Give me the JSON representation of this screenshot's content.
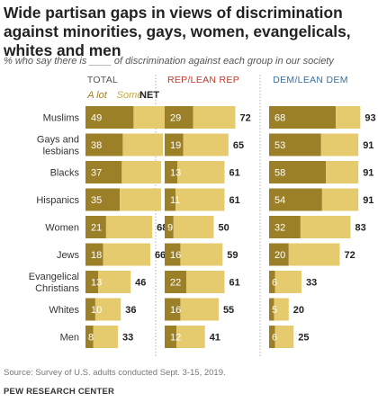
{
  "title": "Wide partisan gaps in views of discrimination against minorities, gays, women, evangelicals, whites and men",
  "subtitle": "% who say there is ____ of discrimination against each group in our society",
  "source": "Source: Survey of U.S. adults conducted Sept. 3-15, 2019.",
  "org": "PEW RESEARCH CENTER",
  "colors": {
    "alot": "#9b8028",
    "some": "#e6cb6e",
    "alot_text": "#ffffff",
    "label": "#333333",
    "net": "#222222",
    "divider": "#b0b0b0"
  },
  "chart_data": {
    "type": "bar",
    "stacked": true,
    "legend": {
      "alot": "A lot",
      "some": "Some",
      "net": "NET"
    },
    "categories": [
      [
        "Muslims"
      ],
      [
        "Gays and",
        "lesbians"
      ],
      [
        "Blacks"
      ],
      [
        "Hispanics"
      ],
      [
        "Women"
      ],
      [
        "Jews"
      ],
      [
        "Evangelical",
        "Christians"
      ],
      [
        "Whites"
      ],
      [
        "Men"
      ]
    ],
    "panels": [
      {
        "name": "TOTAL",
        "header_color": "#555555",
        "alot": [
          49,
          38,
          37,
          35,
          21,
          18,
          13,
          10,
          8
        ],
        "some": [
          34,
          41,
          40,
          42,
          47,
          48,
          33,
          26,
          25
        ],
        "net": [
          83,
          79,
          77,
          77,
          68,
          66,
          46,
          36,
          33
        ]
      },
      {
        "name": "REP/LEAN REP",
        "header_color": "#c0392b",
        "alot": [
          29,
          19,
          13,
          11,
          9,
          16,
          22,
          16,
          12
        ],
        "some": [
          43,
          46,
          48,
          50,
          41,
          43,
          39,
          39,
          29
        ],
        "net": [
          72,
          65,
          61,
          61,
          50,
          59,
          61,
          55,
          41
        ]
      },
      {
        "name": "DEM/LEAN DEM",
        "header_color": "#3a6fa0",
        "alot": [
          68,
          53,
          58,
          54,
          32,
          20,
          6,
          5,
          6
        ],
        "some": [
          25,
          38,
          33,
          37,
          51,
          52,
          27,
          15,
          19
        ],
        "net": [
          93,
          91,
          91,
          91,
          83,
          72,
          33,
          20,
          25
        ]
      }
    ]
  }
}
